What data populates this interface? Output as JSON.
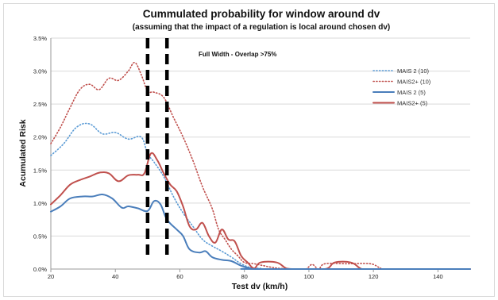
{
  "chart_data": {
    "type": "line",
    "title": "Cummulated probability for window around dv",
    "subtitle": "(assuming that the impact of a regulation is local around chosen dv)",
    "xlabel": "Test dv (km/h)",
    "ylabel": "Acumulated Risk",
    "annotation": "Full Width - Overlap >75%",
    "xlim": [
      20,
      150
    ],
    "ylim": [
      0,
      0.035
    ],
    "x_ticks": [
      20,
      40,
      60,
      80,
      100,
      120,
      140
    ],
    "x_tick_labels": [
      "20",
      "40",
      "60",
      "80",
      "100",
      "120",
      "140"
    ],
    "y_ticks": [
      0,
      0.005,
      0.01,
      0.015,
      0.02,
      0.025,
      0.03,
      0.035
    ],
    "y_tick_labels": [
      "0.0%",
      "0.5%",
      "1.0%",
      "1.5%",
      "2.0%",
      "2.5%",
      "3.0%",
      "3.5%"
    ],
    "grid": "horizontal",
    "legend_position": "right",
    "vertical_markers": [
      50,
      56
    ],
    "series": [
      {
        "name": "MAIS 2 (10)",
        "color": "#5b9bd5",
        "style": "dotted",
        "points": [
          [
            20,
            0.0172
          ],
          [
            24,
            0.019
          ],
          [
            28,
            0.0215
          ],
          [
            32,
            0.022
          ],
          [
            36,
            0.0205
          ],
          [
            40,
            0.0207
          ],
          [
            44,
            0.0197
          ],
          [
            48,
            0.02
          ],
          [
            50,
            0.0175
          ],
          [
            52,
            0.0162
          ],
          [
            55,
            0.014
          ],
          [
            58,
            0.011
          ],
          [
            61,
            0.0085
          ],
          [
            64,
            0.0065
          ],
          [
            67,
            0.0045
          ],
          [
            70,
            0.0035
          ],
          [
            73,
            0.0027
          ],
          [
            76,
            0.0018
          ],
          [
            79,
            0.0008
          ],
          [
            82,
            0.0002
          ],
          [
            85,
            0.0001
          ],
          [
            88,
            0
          ],
          [
            150,
            0
          ]
        ]
      },
      {
        "name": "MAIS2+ (10)",
        "color": "#c0504d",
        "style": "dotted",
        "points": [
          [
            20,
            0.019
          ],
          [
            23,
            0.0215
          ],
          [
            26,
            0.0245
          ],
          [
            29,
            0.0272
          ],
          [
            32,
            0.028
          ],
          [
            35,
            0.0272
          ],
          [
            38,
            0.0289
          ],
          [
            41,
            0.0286
          ],
          [
            44,
            0.03
          ],
          [
            46,
            0.0313
          ],
          [
            48,
            0.0295
          ],
          [
            50,
            0.027
          ],
          [
            52,
            0.0268
          ],
          [
            55,
            0.026
          ],
          [
            58,
            0.023
          ],
          [
            61,
            0.02
          ],
          [
            64,
            0.0165
          ],
          [
            67,
            0.0125
          ],
          [
            70,
            0.0092
          ],
          [
            72,
            0.006
          ],
          [
            74,
            0.0045
          ],
          [
            76,
            0.003
          ],
          [
            78,
            0.002
          ],
          [
            80,
            0.001
          ],
          [
            83,
            0.0008
          ],
          [
            86,
            0.0005
          ],
          [
            88,
            0.0003
          ],
          [
            91,
            0.0001
          ],
          [
            96,
            0
          ],
          [
            99,
            0
          ],
          [
            101,
            0.0007
          ],
          [
            103,
            0
          ],
          [
            105,
            0.0008
          ],
          [
            112,
            0.0008
          ],
          [
            119,
            0.0008
          ],
          [
            122,
            0.0002
          ],
          [
            125,
            0
          ],
          [
            150,
            0
          ]
        ]
      },
      {
        "name": "MAIS 2 (5)",
        "color": "#4a7ebb",
        "style": "solid",
        "points": [
          [
            20,
            0.0087
          ],
          [
            23,
            0.0095
          ],
          [
            26,
            0.0107
          ],
          [
            30,
            0.011
          ],
          [
            33,
            0.011
          ],
          [
            36,
            0.0113
          ],
          [
            39,
            0.0107
          ],
          [
            42,
            0.0093
          ],
          [
            44,
            0.0095
          ],
          [
            47,
            0.0092
          ],
          [
            50,
            0.0088
          ],
          [
            52,
            0.0103
          ],
          [
            54,
            0.0098
          ],
          [
            56,
            0.0075
          ],
          [
            59,
            0.006
          ],
          [
            61,
            0.005
          ],
          [
            63,
            0.003
          ],
          [
            66,
            0.0025
          ],
          [
            68,
            0.0027
          ],
          [
            70,
            0.0018
          ],
          [
            73,
            0.0014
          ],
          [
            76,
            0.0012
          ],
          [
            79,
            0.0005
          ],
          [
            82,
            0.0001
          ],
          [
            85,
            0
          ],
          [
            150,
            0
          ]
        ]
      },
      {
        "name": "MAIS2+ (5)",
        "color": "#c0504d",
        "style": "solid",
        "points": [
          [
            20,
            0.0098
          ],
          [
            23,
            0.0112
          ],
          [
            26,
            0.0128
          ],
          [
            29,
            0.0135
          ],
          [
            32,
            0.014
          ],
          [
            35,
            0.0146
          ],
          [
            38,
            0.0145
          ],
          [
            41,
            0.0133
          ],
          [
            44,
            0.0142
          ],
          [
            47,
            0.0143
          ],
          [
            49,
            0.0145
          ],
          [
            51,
            0.0175
          ],
          [
            53,
            0.0165
          ],
          [
            55,
            0.0145
          ],
          [
            57,
            0.0128
          ],
          [
            59,
            0.0118
          ],
          [
            61,
            0.0095
          ],
          [
            63,
            0.0065
          ],
          [
            65,
            0.006
          ],
          [
            67,
            0.007
          ],
          [
            69,
            0.005
          ],
          [
            71,
            0.004
          ],
          [
            73,
            0.006
          ],
          [
            75,
            0.0045
          ],
          [
            77,
            0.0042
          ],
          [
            79,
            0.002
          ],
          [
            81,
            0.001
          ],
          [
            83,
            0.0001
          ],
          [
            85,
            0.001
          ],
          [
            90,
            0.001
          ],
          [
            93,
            0.0001
          ],
          [
            96,
            0
          ],
          [
            105,
            0
          ],
          [
            108,
            0.001
          ],
          [
            113,
            0.001
          ],
          [
            116,
            0.0001
          ],
          [
            118,
            0
          ],
          [
            150,
            0
          ]
        ]
      }
    ]
  }
}
